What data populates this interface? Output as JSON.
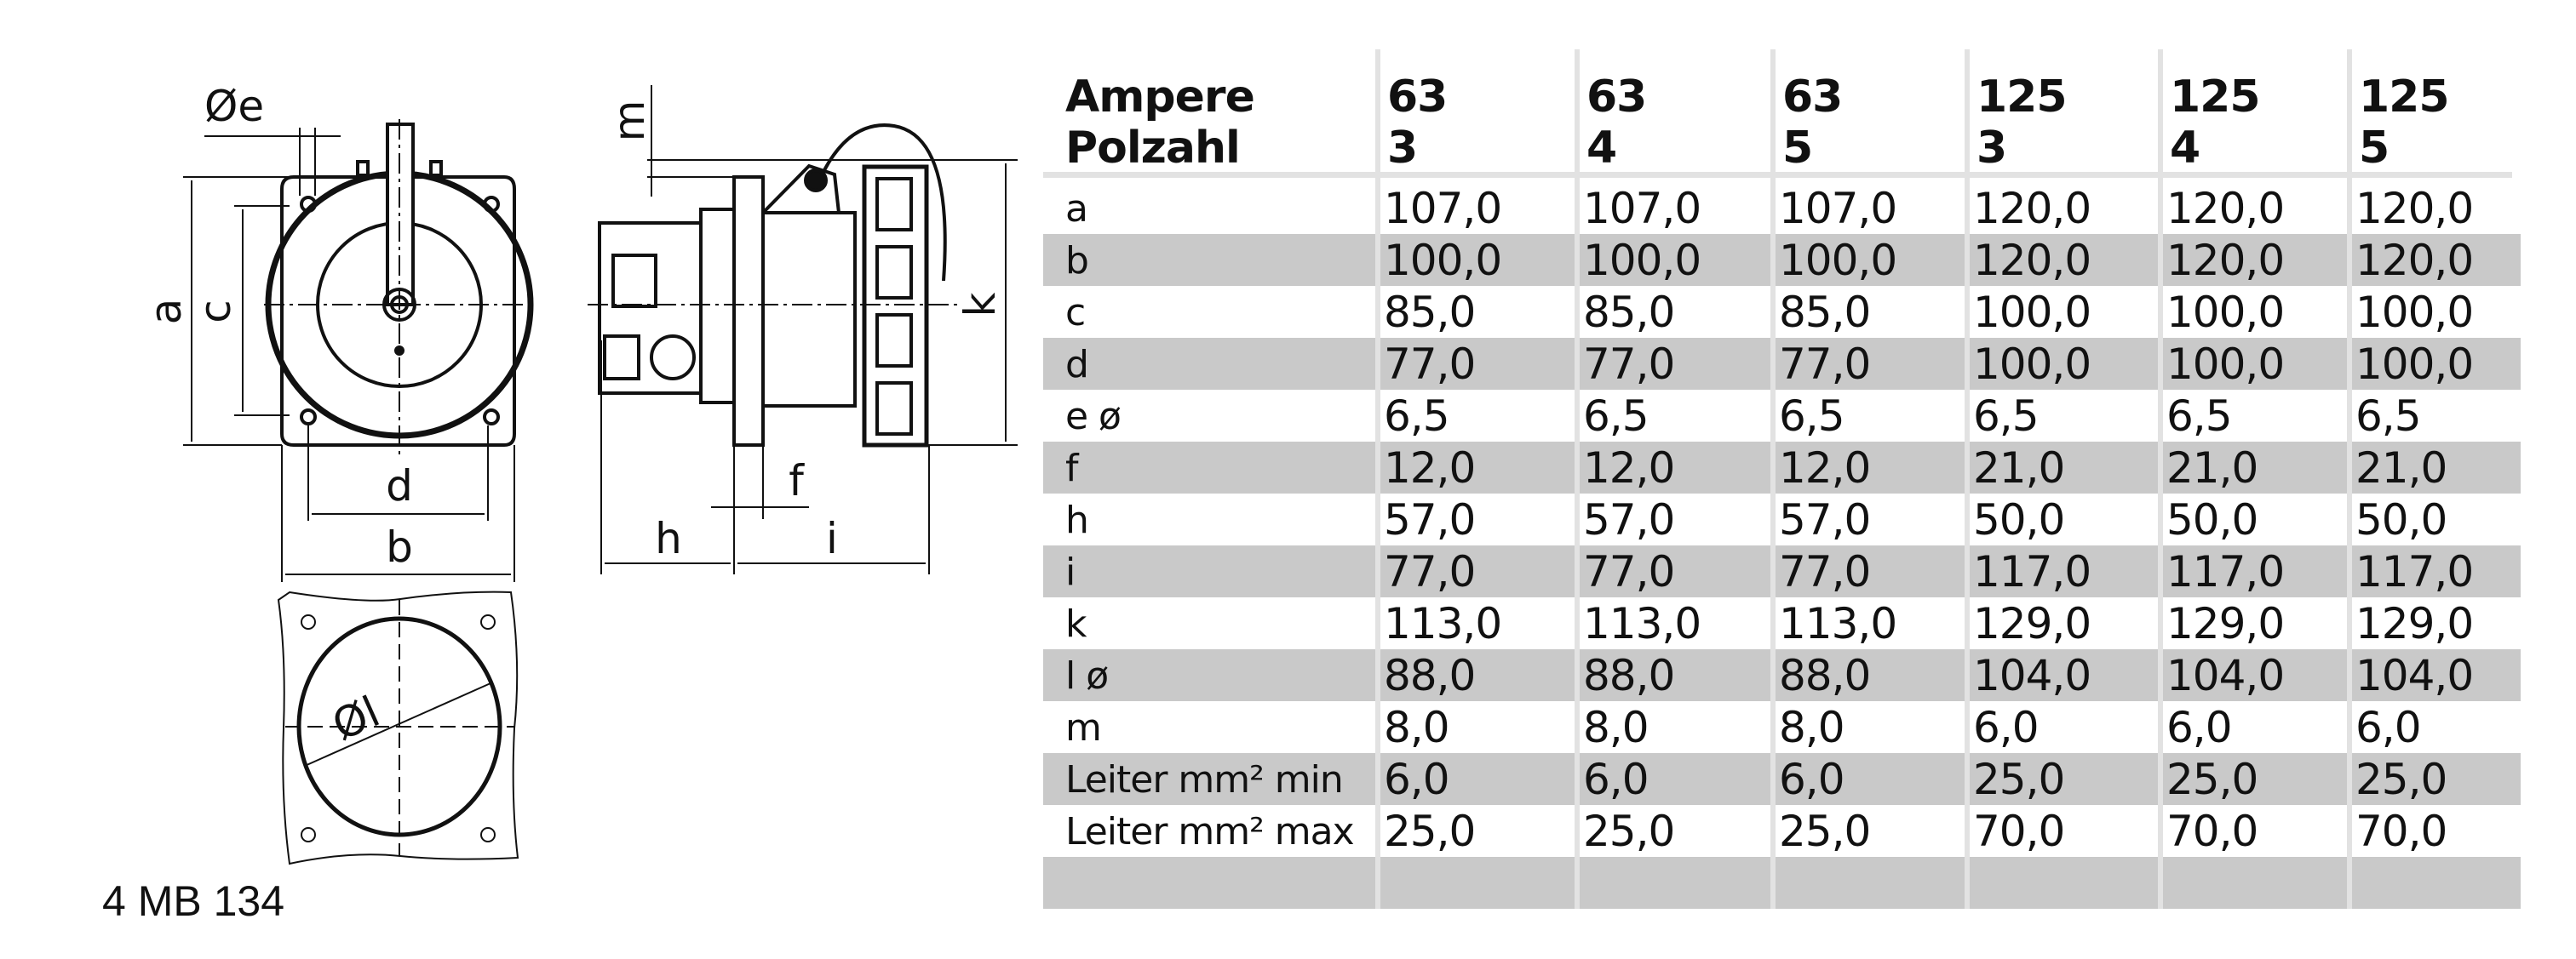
{
  "drawing": {
    "labels": {
      "e": "Øe",
      "m": "m",
      "a": "a",
      "c": "c",
      "k": "k",
      "d": "d",
      "f": "f",
      "b": "b",
      "h": "h",
      "i": "i",
      "l": "Øl"
    },
    "model": "4 MB 134"
  },
  "table": {
    "header": {
      "row1_label": "Ampere",
      "row2_label": "Polzahl",
      "columns": [
        {
          "ampere": "63",
          "polzahl": "3"
        },
        {
          "ampere": "63",
          "polzahl": "4"
        },
        {
          "ampere": "63",
          "polzahl": "5"
        },
        {
          "ampere": "125",
          "polzahl": "3"
        },
        {
          "ampere": "125",
          "polzahl": "4"
        },
        {
          "ampere": "125",
          "polzahl": "5"
        }
      ]
    },
    "rows": [
      {
        "label": "a",
        "values": [
          "107,0",
          "107,0",
          "107,0",
          "120,0",
          "120,0",
          "120,0"
        ]
      },
      {
        "label": "b",
        "values": [
          "100,0",
          "100,0",
          "100,0",
          "120,0",
          "120,0",
          "120,0"
        ]
      },
      {
        "label": "c",
        "values": [
          "85,0",
          "85,0",
          "85,0",
          "100,0",
          "100,0",
          "100,0"
        ]
      },
      {
        "label": "d",
        "values": [
          "77,0",
          "77,0",
          "77,0",
          "100,0",
          "100,0",
          "100,0"
        ]
      },
      {
        "label": "e ø",
        "values": [
          "6,5",
          "6,5",
          "6,5",
          "6,5",
          "6,5",
          "6,5"
        ]
      },
      {
        "label": "f",
        "values": [
          "12,0",
          "12,0",
          "12,0",
          "21,0",
          "21,0",
          "21,0"
        ]
      },
      {
        "label": "h",
        "values": [
          "57,0",
          "57,0",
          "57,0",
          "50,0",
          "50,0",
          "50,0"
        ]
      },
      {
        "label": "i",
        "values": [
          "77,0",
          "77,0",
          "77,0",
          "117,0",
          "117,0",
          "117,0"
        ]
      },
      {
        "label": "k",
        "values": [
          "113,0",
          "113,0",
          "113,0",
          "129,0",
          "129,0",
          "129,0"
        ]
      },
      {
        "label": "l ø",
        "values": [
          "88,0",
          "88,0",
          "88,0",
          "104,0",
          "104,0",
          "104,0"
        ]
      },
      {
        "label": "m",
        "values": [
          "8,0",
          "8,0",
          "8,0",
          "6,0",
          "6,0",
          "6,0"
        ]
      },
      {
        "label": "Leiter mm² min",
        "values": [
          "6,0",
          "6,0",
          "6,0",
          "25,0",
          "25,0",
          "25,0"
        ]
      },
      {
        "label": "Leiter mm² max",
        "values": [
          "25,0",
          "25,0",
          "25,0",
          "70,0",
          "70,0",
          "70,0"
        ]
      },
      {
        "label": "",
        "values": [
          "",
          "",
          "",
          "",
          "",
          ""
        ]
      }
    ],
    "colors": {
      "shade": "#c9c9c9",
      "separator": "#e2e2e2"
    }
  }
}
